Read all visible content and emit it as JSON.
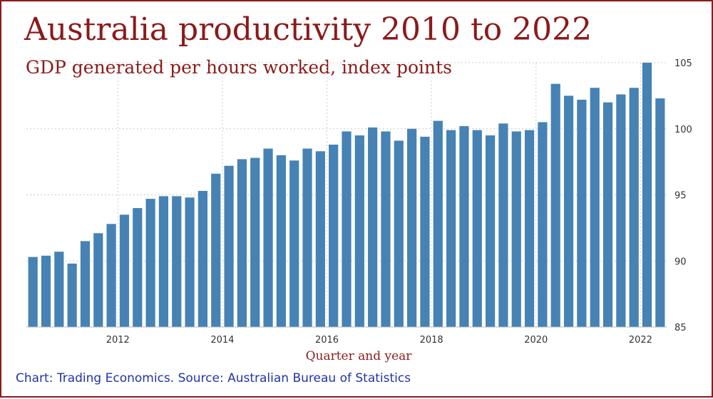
{
  "title": "Australia productivity 2010 to 2022",
  "subtitle": "GDP generated per hours worked, index points",
  "source": "Chart: Trading Economics. Source: Australian Bureau of Statistics",
  "colors": {
    "bar": "#4682b4",
    "title": "#8b1a1a",
    "source": "#2233aa",
    "grid": "#cccccc"
  },
  "chart_data": {
    "type": "bar",
    "title": "Australia productivity 2010 to 2022",
    "subtitle": "GDP generated per hours worked, index points",
    "xlabel": "Quarter and year",
    "ylabel": "",
    "ylim": [
      85,
      105
    ],
    "yticks": [
      85,
      90,
      95,
      100,
      105
    ],
    "y_axis_side": "right",
    "grid": true,
    "x_tick_labels": [
      {
        "label": "2012",
        "index": 6.5
      },
      {
        "label": "2014",
        "index": 14.5
      },
      {
        "label": "2016",
        "index": 22.5
      },
      {
        "label": "2018",
        "index": 30.5
      },
      {
        "label": "2020",
        "index": 38.5
      },
      {
        "label": "2022",
        "index": 46.5
      }
    ],
    "values": [
      90.3,
      90.4,
      90.7,
      89.8,
      91.5,
      92.1,
      92.8,
      93.5,
      94.0,
      94.7,
      94.9,
      94.9,
      94.8,
      95.3,
      96.6,
      97.2,
      97.7,
      97.8,
      98.5,
      98.0,
      97.6,
      98.5,
      98.3,
      98.8,
      99.8,
      99.5,
      100.1,
      99.8,
      99.1,
      100.0,
      99.4,
      100.6,
      99.9,
      100.2,
      99.9,
      99.5,
      100.4,
      99.8,
      99.9,
      100.5,
      103.4,
      102.5,
      102.2,
      103.1,
      102.0,
      102.6,
      103.1,
      105.0,
      102.3
    ]
  }
}
